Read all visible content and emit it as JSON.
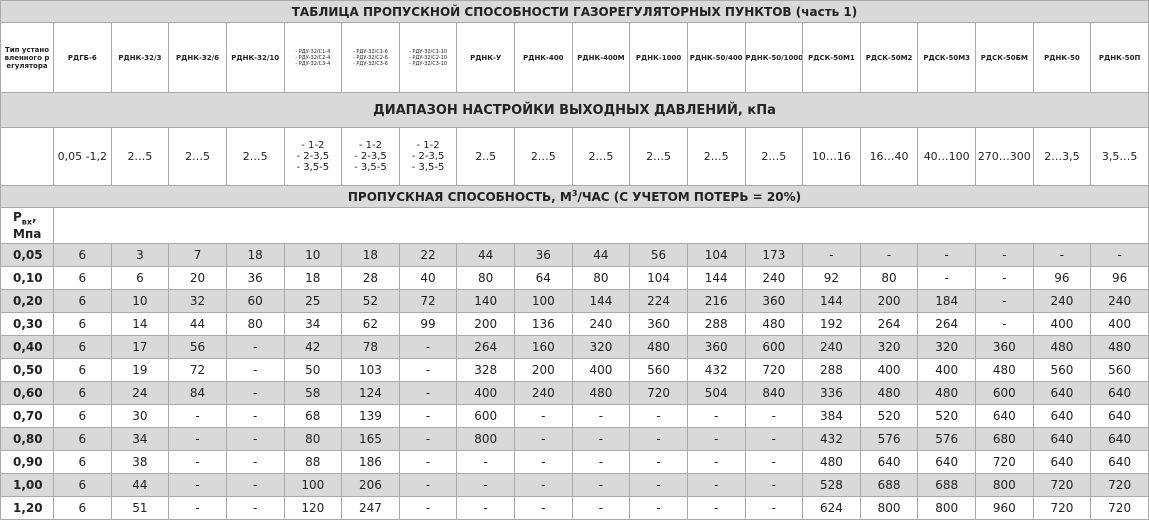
{
  "table": {
    "title": "ТАБЛИЦА ПРОПУСКНОЙ СПОСОБНОСТИ ГАЗОРЕГУЛЯТОРНЫХ ПУНКТОВ (часть 1)",
    "corner": "Тип установленного регулятора",
    "headers": [
      "РДГБ-6",
      "РДНК-32/3",
      "РДНК-32/6",
      "РДНК-32/10",
      [
        "- РДУ-32/С1-4",
        "- РДУ-32/С2-4",
        "- РДУ-32/С3-4"
      ],
      [
        "- РДУ-32/С1-6",
        "- РДУ-32/С2-6",
        "- РДУ-32/С3-6"
      ],
      [
        "- РДУ-32/С1-10",
        "- РДУ-32/С2-10",
        "- РДУ-32/С3-10"
      ],
      "РДНК-У",
      "РДНК-400",
      "РДНК-400М",
      "РДНК-1000",
      "РДНК-50/400",
      "РДНК-50/1000",
      "РДСК-50М1",
      "РДСК-50М2",
      "РДСК-50М3",
      "РДСК-50БМ",
      "РДНК-50",
      "РДНК-50П"
    ],
    "range_section": "ДИАПАЗОН НАСТРОЙКИ ВЫХОДНЫХ ДАВЛЕНИЙ, кПа",
    "ranges": [
      "0,05 -1,2",
      "2…5",
      "2…5",
      "2…5",
      [
        "- 1-2",
        "- 2-3,5",
        "- 3,5-5"
      ],
      [
        "- 1-2",
        "- 2-3,5",
        "- 3,5-5"
      ],
      [
        "- 1-2",
        "- 2-3,5",
        "- 3,5-5"
      ],
      "2..5",
      "2…5",
      "2…5",
      "2…5",
      "2…5",
      "2…5",
      "10…16",
      "16…40",
      "40…100",
      "270…300",
      "2…3,5",
      "3,5…5"
    ],
    "capacity_section": [
      "ПРОПУСКНАЯ СПОСОБНОСТЬ, М",
      "3",
      "/ЧАС (С УЧЕТОМ ПОТЕРЬ = 20%)"
    ],
    "pressure_label": [
      "P",
      "вх",
      ",",
      "Мпа"
    ],
    "rows": [
      [
        "0,05",
        "6",
        "3",
        "7",
        "18",
        "10",
        "18",
        "22",
        "44",
        "36",
        "44",
        "56",
        "104",
        "173",
        "-",
        "-",
        "-",
        "-",
        "-",
        "-"
      ],
      [
        "0,10",
        "6",
        "6",
        "20",
        "36",
        "18",
        "28",
        "40",
        "80",
        "64",
        "80",
        "104",
        "144",
        "240",
        "92",
        "80",
        "-",
        "-",
        "96",
        "96"
      ],
      [
        "0,20",
        "6",
        "10",
        "32",
        "60",
        "25",
        "52",
        "72",
        "140",
        "100",
        "144",
        "224",
        "216",
        "360",
        "144",
        "200",
        "184",
        "-",
        "240",
        "240"
      ],
      [
        "0,30",
        "6",
        "14",
        "44",
        "80",
        "34",
        "62",
        "99",
        "200",
        "136",
        "240",
        "360",
        "288",
        "480",
        "192",
        "264",
        "264",
        "-",
        "400",
        "400"
      ],
      [
        "0,40",
        "6",
        "17",
        "56",
        "-",
        "42",
        "78",
        "-",
        "264",
        "160",
        "320",
        "480",
        "360",
        "600",
        "240",
        "320",
        "320",
        "360",
        "480",
        "480"
      ],
      [
        "0,50",
        "6",
        "19",
        "72",
        "-",
        "50",
        "103",
        "-",
        "328",
        "200",
        "400",
        "560",
        "432",
        "720",
        "288",
        "400",
        "400",
        "480",
        "560",
        "560"
      ],
      [
        "0,60",
        "6",
        "24",
        "84",
        "-",
        "58",
        "124",
        "-",
        "400",
        "240",
        "480",
        "720",
        "504",
        "840",
        "336",
        "480",
        "480",
        "600",
        "640",
        "640"
      ],
      [
        "0,70",
        "6",
        "30",
        "-",
        "-",
        "68",
        "139",
        "-",
        "600",
        "-",
        "-",
        "-",
        "-",
        "-",
        "384",
        "520",
        "520",
        "640",
        "640",
        "640"
      ],
      [
        "0,80",
        "6",
        "34",
        "-",
        "-",
        "80",
        "165",
        "-",
        "800",
        "-",
        "-",
        "-",
        "-",
        "-",
        "432",
        "576",
        "576",
        "680",
        "640",
        "640"
      ],
      [
        "0,90",
        "6",
        "38",
        "-",
        "-",
        "88",
        "186",
        "-",
        "-",
        "-",
        "-",
        "-",
        "-",
        "-",
        "480",
        "640",
        "640",
        "720",
        "640",
        "640"
      ],
      [
        "1,00",
        "6",
        "44",
        "-",
        "-",
        "100",
        "206",
        "-",
        "-",
        "-",
        "-",
        "-",
        "-",
        "-",
        "528",
        "688",
        "688",
        "800",
        "720",
        "720"
      ],
      [
        "1,20",
        "6",
        "51",
        "-",
        "-",
        "120",
        "247",
        "-",
        "-",
        "-",
        "-",
        "-",
        "-",
        "-",
        "624",
        "800",
        "800",
        "960",
        "720",
        "720"
      ]
    ]
  }
}
